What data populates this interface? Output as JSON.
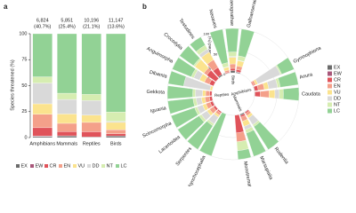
{
  "chart_data": [
    {
      "type": "bar",
      "label": "a",
      "stacked": true,
      "categories": [
        "Amphibians",
        "Mammals",
        "Reptiles",
        "Birds"
      ],
      "annotations": [
        [
          "6,824",
          "(40.7%)"
        ],
        [
          "5,851",
          "(25.4%)"
        ],
        [
          "10,196",
          "(21.1%)"
        ],
        [
          "11,147",
          "(13.6%)"
        ]
      ],
      "ylabel": "Species threatened (%)",
      "ylim": [
        0,
        100
      ],
      "yticks": [
        0,
        25,
        50,
        75,
        100
      ],
      "series": [
        {
          "name": "EX",
          "color": "#6b6b6b",
          "values": [
            1,
            1.5,
            0.5,
            1.5
          ]
        },
        {
          "name": "EW",
          "color": "#a8577a",
          "values": [
            0.5,
            0.2,
            0.1,
            0.1
          ]
        },
        {
          "name": "CR",
          "color": "#e0535a",
          "values": [
            8,
            4,
            5,
            2
          ]
        },
        {
          "name": "EN",
          "color": "#f4a08a",
          "values": [
            13,
            8,
            9,
            4
          ]
        },
        {
          "name": "VU",
          "color": "#fbe38e",
          "values": [
            10,
            9,
            7,
            7
          ]
        },
        {
          "name": "DD",
          "color": "#d9d9d9",
          "values": [
            20,
            14,
            14,
            1
          ]
        },
        {
          "name": "NT",
          "color": "#d6edb1",
          "values": [
            6,
            6,
            6,
            9
          ]
        },
        {
          "name": "LC",
          "color": "#92d295",
          "values": [
            41.5,
            57.3,
            58.4,
            75.4
          ]
        }
      ]
    },
    {
      "type": "radial_bar",
      "label": "b",
      "stacked": true,
      "rlabel": "Species threatened (%)",
      "rlim": [
        0,
        100
      ],
      "rticks": [
        0,
        50,
        100
      ],
      "groups": [
        {
          "name": "Birds",
          "orders": [
            "Neoaves",
            "Palaeognathae",
            "Galloanserae"
          ]
        },
        {
          "name": "Amphibians",
          "orders": [
            "Gymnophiona",
            "Anura",
            "Caudata"
          ]
        },
        {
          "name": "Mammals",
          "orders": [
            "Rodentia",
            "Marsupialia",
            "Monotremata"
          ]
        },
        {
          "name": "Reptiles",
          "orders": [
            "Rhynchocephalia",
            "Serpentes",
            "Lacertoidea",
            "Scincomorpha",
            "Iguania",
            "Gekkota",
            "Dibamia",
            "Anguimorpha",
            "Crocodylia",
            "Testudines"
          ]
        }
      ],
      "series": [
        {
          "name": "EX",
          "color": "#6b6b6b",
          "values": [
            1,
            5,
            2,
            0,
            1,
            1,
            1,
            3,
            0,
            0,
            0,
            0,
            1,
            0,
            0,
            0,
            0,
            0,
            3
          ]
        },
        {
          "name": "EW",
          "color": "#a8577a",
          "values": [
            0,
            0,
            1,
            0,
            0,
            0,
            0,
            0,
            0,
            0,
            0,
            0,
            0,
            0,
            0,
            0,
            0,
            0,
            0
          ]
        },
        {
          "name": "CR",
          "color": "#e0535a",
          "values": [
            2,
            5,
            5,
            2,
            8,
            12,
            3,
            4,
            40,
            0,
            3,
            5,
            6,
            6,
            5,
            0,
            10,
            25,
            18
          ]
        },
        {
          "name": "EN",
          "color": "#f4a08a",
          "values": [
            4,
            10,
            8,
            5,
            14,
            20,
            6,
            10,
            20,
            0,
            6,
            10,
            10,
            10,
            9,
            0,
            12,
            8,
            20
          ]
        },
        {
          "name": "VU",
          "color": "#fbe38e",
          "values": [
            7,
            15,
            12,
            5,
            10,
            13,
            6,
            12,
            0,
            0,
            5,
            7,
            8,
            8,
            7,
            5,
            12,
            25,
            20
          ]
        },
        {
          "name": "DD",
          "color": "#d9d9d9",
          "values": [
            1,
            2,
            1,
            55,
            20,
            10,
            18,
            8,
            0,
            0,
            18,
            15,
            13,
            12,
            16,
            60,
            14,
            0,
            8
          ]
        },
        {
          "name": "NT",
          "color": "#d6edb1",
          "values": [
            9,
            10,
            10,
            3,
            6,
            9,
            5,
            8,
            20,
            0,
            5,
            6,
            6,
            7,
            6,
            0,
            6,
            4,
            10
          ]
        },
        {
          "name": "LC",
          "color": "#92d295",
          "values": [
            76,
            53,
            61,
            30,
            41,
            35,
            61,
            55,
            20,
            100,
            63,
            57,
            56,
            57,
            57,
            35,
            46,
            38,
            21
          ]
        }
      ]
    }
  ]
}
